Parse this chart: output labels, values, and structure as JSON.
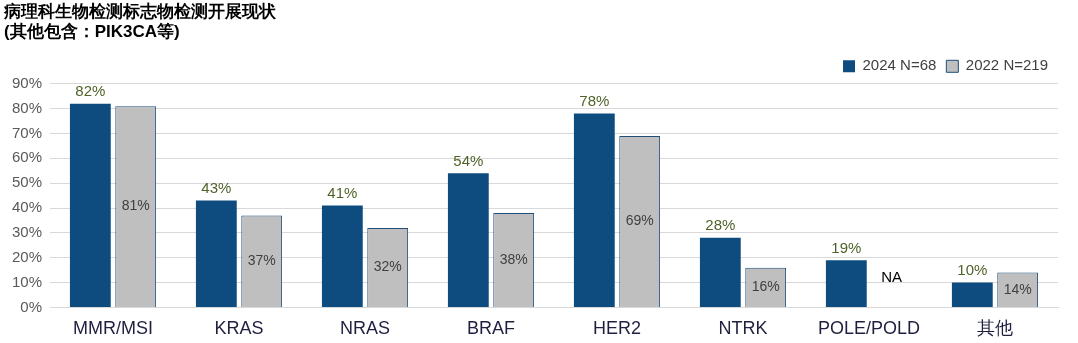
{
  "chart_data": {
    "type": "bar",
    "title": "病理科生物检测标志物检测开展现状",
    "subtitle": "(其他包含：PIK3CA等)",
    "categories": [
      "MMR/MSI",
      "KRAS",
      "NRAS",
      "BRAF",
      "HER2",
      "NTRK",
      "POLE/POLD",
      "其他"
    ],
    "series": [
      {
        "name": "2024 N=68",
        "color": "#0e4c80",
        "values": [
          82,
          43,
          41,
          54,
          78,
          28,
          19,
          10
        ],
        "value_labels": [
          "82%",
          "43%",
          "41%",
          "54%",
          "78%",
          "28%",
          "19%",
          "10%"
        ]
      },
      {
        "name": "2022 N=219",
        "color": "#bfbfbf",
        "values": [
          81,
          37,
          32,
          38,
          69,
          16,
          null,
          14
        ],
        "value_labels": [
          "81%",
          "37%",
          "32%",
          "38%",
          "69%",
          "16%",
          "NA",
          "14%"
        ]
      }
    ],
    "ylim": [
      0,
      90
    ],
    "yticks": [
      {
        "value": 0,
        "label": "0%"
      },
      {
        "value": 10,
        "label": "10%"
      },
      {
        "value": 20,
        "label": "20%"
      },
      {
        "value": 30,
        "label": "30%"
      },
      {
        "value": 40,
        "label": "40%"
      },
      {
        "value": 50,
        "label": "50%"
      },
      {
        "value": 60,
        "label": "60%"
      },
      {
        "value": 70,
        "label": "70%"
      },
      {
        "value": 80,
        "label": "80%"
      },
      {
        "value": 90,
        "label": "90%"
      }
    ],
    "grid": "y",
    "legend": "top right"
  }
}
